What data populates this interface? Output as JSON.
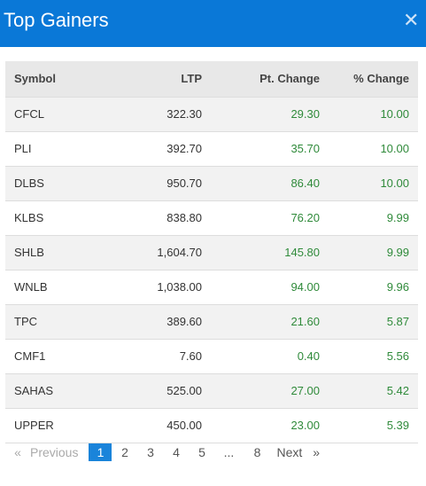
{
  "header": {
    "title": "Top Gainers",
    "close_icon": "close-icon"
  },
  "table": {
    "columns": [
      "Symbol",
      "LTP",
      "Pt. Change",
      "% Change"
    ],
    "rows": [
      {
        "symbol": "CFCL",
        "ltp": "322.30",
        "pt_change": "29.30",
        "pct_change": "10.00"
      },
      {
        "symbol": "PLI",
        "ltp": "392.70",
        "pt_change": "35.70",
        "pct_change": "10.00"
      },
      {
        "symbol": "DLBS",
        "ltp": "950.70",
        "pt_change": "86.40",
        "pct_change": "10.00"
      },
      {
        "symbol": "KLBS",
        "ltp": "838.80",
        "pt_change": "76.20",
        "pct_change": "9.99"
      },
      {
        "symbol": "SHLB",
        "ltp": "1,604.70",
        "pt_change": "145.80",
        "pct_change": "9.99"
      },
      {
        "symbol": "WNLB",
        "ltp": "1,038.00",
        "pt_change": "94.00",
        "pct_change": "9.96"
      },
      {
        "symbol": "TPC",
        "ltp": "389.60",
        "pt_change": "21.60",
        "pct_change": "5.87"
      },
      {
        "symbol": "CMF1",
        "ltp": "7.60",
        "pt_change": "0.40",
        "pct_change": "5.56"
      },
      {
        "symbol": "SAHAS",
        "ltp": "525.00",
        "pt_change": "27.00",
        "pct_change": "5.42"
      },
      {
        "symbol": "UPPER",
        "ltp": "450.00",
        "pt_change": "23.00",
        "pct_change": "5.39"
      }
    ]
  },
  "pagination": {
    "first": "«",
    "previous": "Previous",
    "pages": [
      "1",
      "2",
      "3",
      "4",
      "5"
    ],
    "ellipsis": "...",
    "last_page": "8",
    "next": "Next",
    "last": "»",
    "current": "1"
  },
  "colors": {
    "header_bg": "#0a78d7",
    "positive": "#2f8a3a",
    "active_page": "#1a84da"
  }
}
